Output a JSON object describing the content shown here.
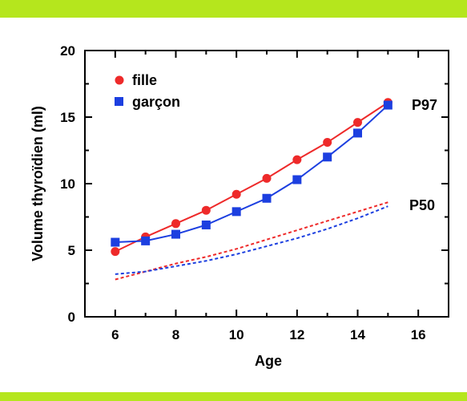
{
  "chart_data": {
    "type": "line",
    "xlabel": "Age",
    "ylabel": "Volume thyroïdien (ml)",
    "xlim": [
      5,
      17
    ],
    "ylim": [
      0,
      20
    ],
    "x_ticks": [
      6,
      8,
      10,
      12,
      14,
      16
    ],
    "y_ticks": [
      0,
      5,
      10,
      15,
      20
    ],
    "legend_position": "top-left",
    "series": [
      {
        "name": "fille",
        "group": "P97",
        "marker": "circle",
        "style": "solid",
        "color": "#ee2a2a",
        "x": [
          6,
          7,
          8,
          9,
          10,
          11,
          12,
          13,
          14,
          15
        ],
        "values": [
          4.9,
          6.0,
          7.0,
          8.0,
          9.2,
          10.4,
          11.8,
          13.1,
          14.6,
          16.1
        ]
      },
      {
        "name": "garçon",
        "group": "P97",
        "marker": "square",
        "style": "solid",
        "color": "#1c3fe0",
        "x": [
          6,
          7,
          8,
          9,
          10,
          11,
          12,
          13,
          14,
          15
        ],
        "values": [
          5.6,
          5.7,
          6.2,
          6.9,
          7.9,
          8.9,
          10.3,
          12.0,
          13.8,
          15.9
        ]
      },
      {
        "group": "P50",
        "marker": "none",
        "style": "dashed",
        "color": "#ee2a2a",
        "x": [
          6,
          7,
          8,
          9,
          10,
          11,
          12,
          13,
          14,
          15
        ],
        "values": [
          2.8,
          3.4,
          4.0,
          4.5,
          5.1,
          5.8,
          6.5,
          7.2,
          7.9,
          8.6
        ]
      },
      {
        "group": "P50",
        "marker": "none",
        "style": "dashed",
        "color": "#1c3fe0",
        "x": [
          6,
          7,
          8,
          9,
          10,
          11,
          12,
          13,
          14,
          15
        ],
        "values": [
          3.2,
          3.4,
          3.8,
          4.2,
          4.7,
          5.3,
          5.9,
          6.6,
          7.4,
          8.3
        ]
      }
    ],
    "legend": [
      {
        "label": "fille",
        "marker": "circle",
        "color": "#ee2a2a"
      },
      {
        "label": "garçon",
        "marker": "square",
        "color": "#1c3fe0"
      }
    ],
    "annotations": [
      {
        "text": "P97",
        "near_series": "garçon"
      },
      {
        "text": "P50",
        "near_series": "P50"
      }
    ]
  }
}
